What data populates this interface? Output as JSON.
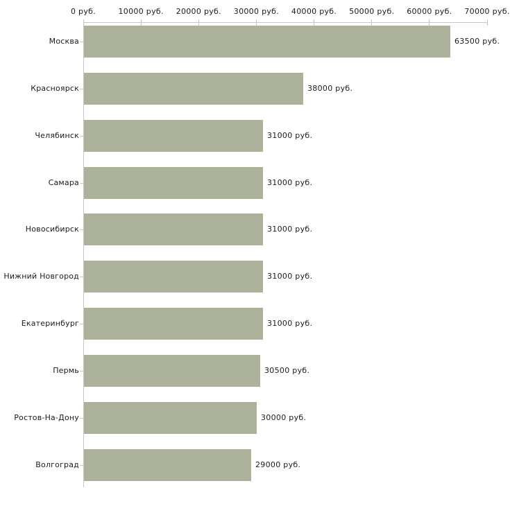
{
  "chart_data": {
    "type": "bar",
    "orientation": "horizontal",
    "title": "",
    "xlabel": "",
    "ylabel": "",
    "grid": false,
    "axis_position": "top",
    "categories": [
      "Москва",
      "Красноярск",
      "Челябинск",
      "Самара",
      "Новосибирск",
      "Нижний Новгород",
      "Екатеринбург",
      "Пермь",
      "Ростов-На-Дону",
      "Волгоград"
    ],
    "values": [
      63500,
      38000,
      31000,
      31000,
      31000,
      31000,
      31000,
      30500,
      30000,
      29000
    ],
    "value_labels": [
      "63500 руб.",
      "38000 руб.",
      "31000 руб.",
      "31000 руб.",
      "31000 руб.",
      "31000 руб.",
      "31000 руб.",
      "30500 руб.",
      "30000 руб.",
      "29000 руб."
    ],
    "x_ticks": [
      0,
      10000,
      20000,
      30000,
      40000,
      50000,
      60000,
      70000
    ],
    "x_tick_labels": [
      "0 руб.",
      "10000 руб.",
      "20000 руб.",
      "30000 руб.",
      "40000 руб.",
      "50000 руб.",
      "60000 руб.",
      "70000 руб."
    ],
    "xlim": [
      0,
      70000
    ],
    "unit": "руб.",
    "bar_color": "#acb29a",
    "axis_line_color": "#c6c6c6",
    "x_tick_color": "#c9c9a3",
    "category_tick_color": "#ccccaa",
    "text_color": "#1a1a1a",
    "background_color": "#ffffff"
  }
}
